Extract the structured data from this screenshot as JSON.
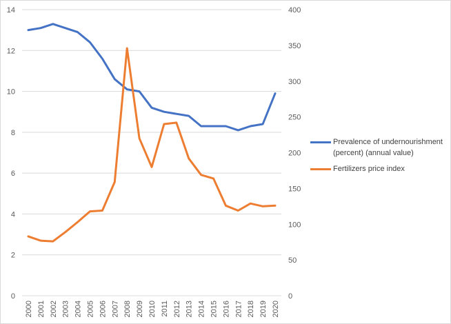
{
  "chart_data": {
    "type": "line",
    "title": "",
    "xlabel": "",
    "ylabel": "",
    "y2label": "",
    "x": [
      "2000",
      "2001",
      "2002",
      "2003",
      "2004",
      "2005",
      "2006",
      "2007",
      "2008",
      "2009",
      "2010",
      "2011",
      "2012",
      "2013",
      "2014",
      "2015",
      "2016",
      "2017",
      "2018",
      "2019",
      "2020"
    ],
    "series": [
      {
        "name": "Prevalence of undernourishment (percent) (annual value)",
        "legend_lines": [
          "Prevalence of undernourishment",
          "(percent) (annual value)"
        ],
        "axis": "left",
        "color": "#4472c4",
        "values": [
          13.0,
          13.1,
          13.3,
          13.1,
          12.9,
          12.4,
          11.6,
          10.6,
          10.1,
          10.0,
          9.2,
          9.0,
          8.9,
          8.8,
          8.3,
          8.3,
          8.3,
          8.1,
          8.3,
          8.4,
          9.9
        ]
      },
      {
        "name": "Fertilizers price index",
        "legend_lines": [
          "Fertilizers price index"
        ],
        "axis": "right",
        "color": "#ed7d31",
        "values": [
          83,
          77,
          76,
          89,
          103,
          118,
          119,
          159,
          346,
          220,
          180,
          240,
          242,
          192,
          169,
          164,
          126,
          119,
          129,
          125,
          126
        ]
      }
    ],
    "ylim": [
      0,
      14
    ],
    "yticks": [
      "0",
      "2",
      "4",
      "6",
      "8",
      "10",
      "12",
      "14"
    ],
    "y2lim": [
      0,
      400
    ],
    "y2ticks": [
      "0",
      "50",
      "100",
      "150",
      "200",
      "250",
      "300",
      "350",
      "400"
    ],
    "grid": true,
    "legend_position": "right"
  }
}
